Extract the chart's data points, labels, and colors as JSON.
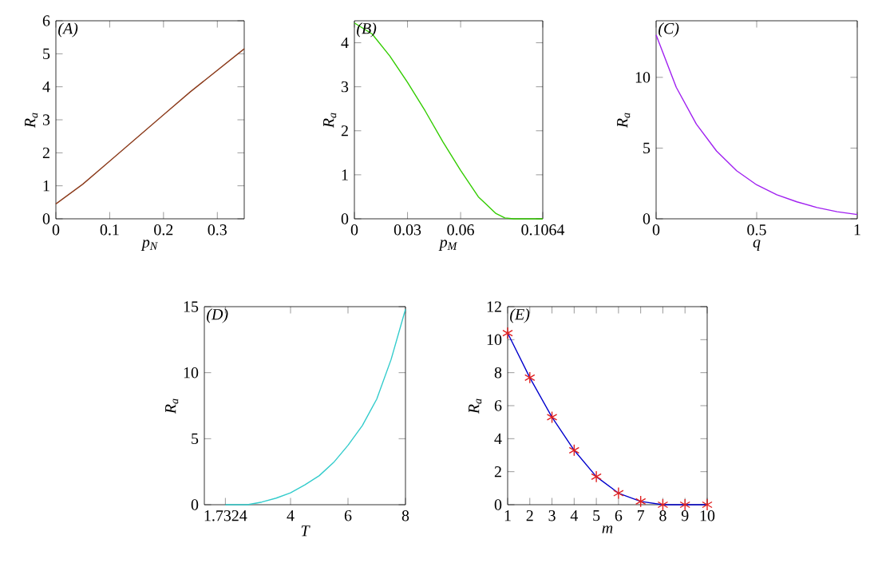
{
  "chart_data": [
    {
      "type": "line",
      "annotations": [
        "(A)"
      ],
      "xlabel": "p$_{N}$",
      "ylabel": "R$_{a}$",
      "xlim": [
        0,
        0.35
      ],
      "ylim": [
        0,
        6
      ],
      "xticks": [
        0,
        0.1,
        0.2,
        0.3
      ],
      "yticks": [
        0,
        1,
        2,
        3,
        4,
        5,
        6
      ],
      "marker": "none",
      "x": [
        0,
        0.05,
        0.1,
        0.15,
        0.2,
        0.25,
        0.3,
        0.35
      ],
      "series": [
        {
          "color": "#8b3a1a",
          "values": [
            0.45,
            1.05,
            1.75,
            2.45,
            3.15,
            3.85,
            4.5,
            5.15
          ]
        }
      ]
    },
    {
      "type": "line",
      "annotations": [
        "(B)"
      ],
      "xlabel": "p$_{M}$",
      "ylabel": "R$_{a}$",
      "xlim": [
        0,
        0.1064
      ],
      "ylim": [
        0,
        4.5
      ],
      "xticks": [
        0,
        0.03,
        0.06,
        0.1064
      ],
      "yticks": [
        0,
        1,
        2,
        3,
        4
      ],
      "marker": "none",
      "x": [
        0,
        0.01,
        0.02,
        0.03,
        0.04,
        0.05,
        0.06,
        0.07,
        0.08,
        0.085,
        0.09,
        0.1064
      ],
      "series": [
        {
          "color": "#33cc00",
          "values": [
            4.45,
            4.2,
            3.7,
            3.1,
            2.45,
            1.75,
            1.1,
            0.5,
            0.12,
            0.02,
            0,
            0
          ]
        }
      ]
    },
    {
      "type": "line",
      "annotations": [
        "(C)"
      ],
      "xlabel": "q",
      "ylabel": "R$_{a}$",
      "xlim": [
        0,
        1
      ],
      "ylim": [
        0,
        14
      ],
      "xticks": [
        0,
        0.5,
        1
      ],
      "yticks": [
        0,
        5,
        10
      ],
      "marker": "none",
      "x": [
        0,
        0.1,
        0.2,
        0.3,
        0.4,
        0.5,
        0.6,
        0.7,
        0.8,
        0.9,
        1
      ],
      "series": [
        {
          "color": "#a020f0",
          "values": [
            13,
            9.3,
            6.7,
            4.8,
            3.4,
            2.4,
            1.7,
            1.2,
            0.8,
            0.5,
            0.3
          ]
        }
      ]
    },
    {
      "type": "line",
      "annotations": [
        "(D)"
      ],
      "xlabel": "T",
      "ylabel": "R$_{a}$",
      "xlim": [
        1,
        8
      ],
      "ylim": [
        0,
        15
      ],
      "xticks": [
        1.7324,
        4,
        6,
        8
      ],
      "yticks": [
        0,
        5,
        10,
        15
      ],
      "marker": "none",
      "x": [
        1.7324,
        2.5,
        3,
        3.5,
        4,
        4.5,
        5,
        5.5,
        6,
        6.5,
        7,
        7.5,
        8
      ],
      "series": [
        {
          "color": "#33cccc",
          "values": [
            0,
            0,
            0.2,
            0.5,
            0.9,
            1.5,
            2.2,
            3.2,
            4.5,
            6.0,
            8.0,
            11,
            14.8
          ]
        }
      ]
    },
    {
      "type": "line",
      "annotations": [
        "(E)"
      ],
      "xlabel": "m",
      "ylabel": "R$_{a}$",
      "xlim": [
        1,
        10
      ],
      "ylim": [
        0,
        12
      ],
      "xticks": [
        1,
        2,
        3,
        4,
        5,
        6,
        7,
        8,
        9,
        10
      ],
      "yticks": [
        0,
        2,
        4,
        6,
        8,
        10,
        12
      ],
      "x": [
        1,
        2,
        3,
        4,
        5,
        6,
        7,
        8,
        9,
        10
      ],
      "series": [
        {
          "type": "line",
          "marker": "none",
          "color": "#0000cc",
          "values": [
            10.4,
            7.7,
            5.3,
            3.3,
            1.7,
            0.7,
            0.2,
            0,
            0,
            0
          ]
        },
        {
          "type": "scatter",
          "marker": "cross",
          "color": "#e02020",
          "values": [
            10.4,
            7.7,
            5.3,
            3.3,
            1.7,
            0.7,
            0.2,
            0,
            0,
            0
          ]
        }
      ]
    }
  ]
}
